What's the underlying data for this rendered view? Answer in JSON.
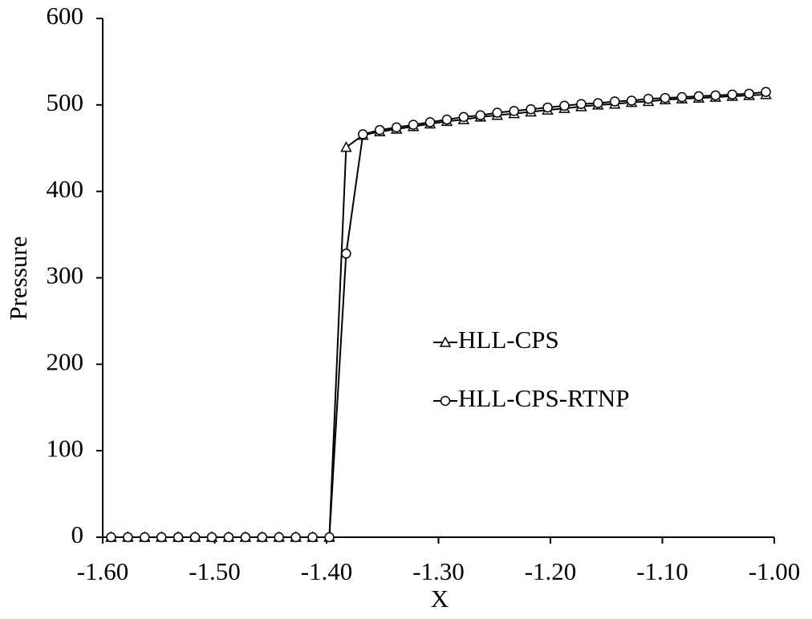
{
  "chart_data": {
    "type": "line",
    "x_label": "X",
    "y_label": "Pressure",
    "x": [
      -1.5925,
      -1.5775,
      -1.5625,
      -1.5475,
      -1.5325,
      -1.5175,
      -1.5025,
      -1.4875,
      -1.4725,
      -1.4575,
      -1.4425,
      -1.4275,
      -1.4125,
      -1.3975,
      -1.3825,
      -1.3675,
      -1.3525,
      -1.3375,
      -1.3225,
      -1.3075,
      -1.2925,
      -1.2775,
      -1.2625,
      -1.2475,
      -1.2325,
      -1.2175,
      -1.2025,
      -1.1875,
      -1.1725,
      -1.1575,
      -1.1425,
      -1.1275,
      -1.1125,
      -1.0975,
      -1.0825,
      -1.0675,
      -1.0525,
      -1.0375,
      -1.0225,
      -1.0075
    ],
    "series": [
      {
        "name": "HLL-CPS",
        "color": "#000000",
        "marker": "triangle",
        "values": [
          0,
          0,
          0,
          0,
          0,
          0,
          0,
          0,
          0,
          0,
          0,
          0,
          0,
          0,
          451,
          465,
          469,
          472,
          475,
          478,
          481,
          483,
          486,
          488,
          490,
          492,
          494,
          496,
          498,
          500,
          501,
          503,
          504,
          506,
          507,
          508,
          509,
          510,
          511,
          512
        ]
      },
      {
        "name": "HLL-CPS-RTNP",
        "color": "#000000",
        "marker": "circle",
        "values": [
          0,
          0,
          0,
          0,
          0,
          0,
          0,
          0,
          0,
          0,
          0,
          0,
          0,
          0,
          328,
          466,
          471,
          474,
          477,
          480,
          483,
          486,
          488,
          491,
          493,
          495,
          497,
          499,
          501,
          502,
          504,
          505,
          507,
          508,
          509,
          510,
          511,
          512,
          513,
          515
        ]
      }
    ],
    "xlim": [
      -1.6,
      -1.0
    ],
    "xticks": [
      {
        "value": -1.6,
        "label": "-1.60"
      },
      {
        "value": -1.5,
        "label": "-1.50"
      },
      {
        "value": -1.4,
        "label": "-1.40"
      },
      {
        "value": -1.3,
        "label": "-1.30"
      },
      {
        "value": -1.2,
        "label": "-1.20"
      },
      {
        "value": -1.1,
        "label": "-1.10"
      },
      {
        "value": -1.0,
        "label": "-1.00"
      }
    ],
    "ylim": [
      0,
      600
    ],
    "yticks": [
      0,
      100,
      200,
      300,
      400,
      500,
      600
    ]
  }
}
